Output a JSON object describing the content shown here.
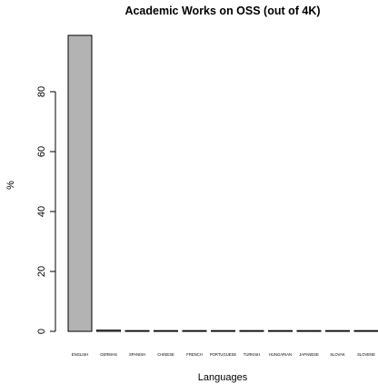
{
  "chart_data": {
    "type": "bar",
    "title": "Academic Works on OSS (out of 4K)",
    "xlabel": "Languages",
    "ylabel": "%",
    "categories": [
      "ENGLISH",
      "GERMAN",
      "SPANISH",
      "CHINESE",
      "FRENCH",
      "PORTUGUESE",
      "TURKISH",
      "HUNGARIAN",
      "JAPANESE",
      "SLOVAK",
      "SLOVENE"
    ],
    "values": [
      98.8,
      0.4,
      0.2,
      0.15,
      0.1,
      0.1,
      0.05,
      0.05,
      0.05,
      0.05,
      0.05
    ],
    "yticks": [
      0,
      20,
      40,
      60,
      80
    ],
    "ylim": [
      0,
      100
    ],
    "bar_color": "#b3b3b3",
    "bar_border_color": "#000000",
    "grid": false,
    "legend": "none"
  }
}
